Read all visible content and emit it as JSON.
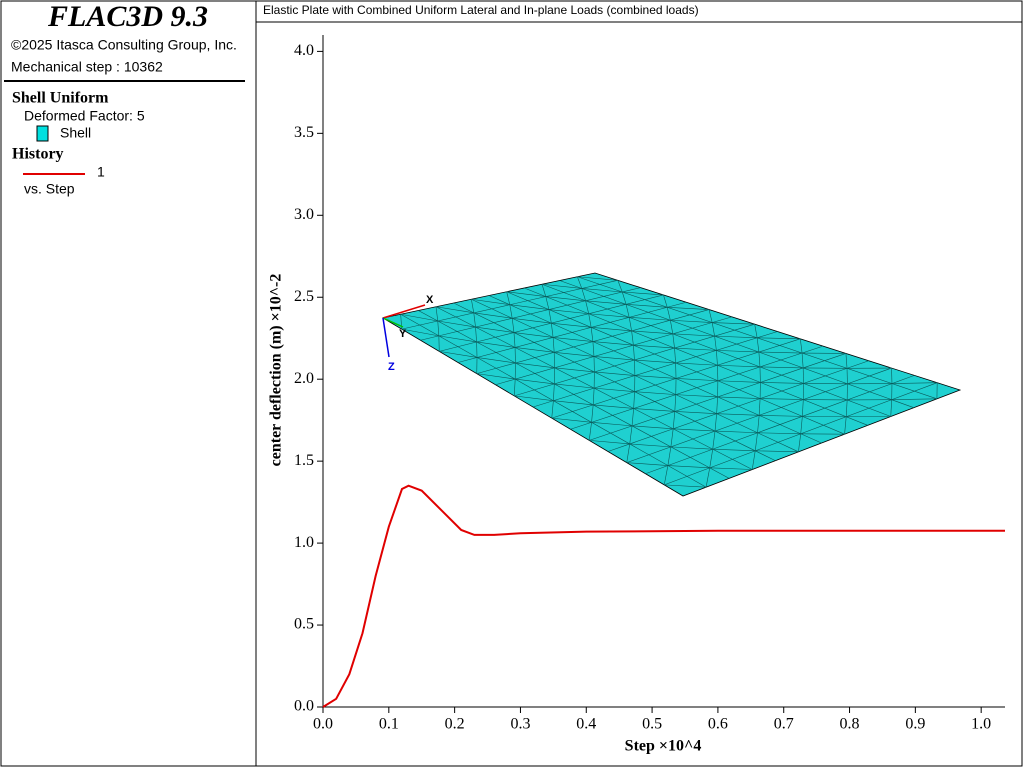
{
  "header": {
    "title": "FLAC3D 9.3",
    "copyright": "©2025 Itasca Consulting Group, Inc.",
    "step": "Mechanical step : 10362"
  },
  "legend": {
    "group_title": "Shell Uniform",
    "deformed": "Deformed Factor: 5",
    "shell": "Shell",
    "history": "History",
    "vs": "vs. Step"
  },
  "axes_triad": {
    "x": "X",
    "y": "Y",
    "z": "Z"
  },
  "chart_data": {
    "type": "line",
    "title": "Elastic Plate with Combined Uniform Lateral and In-plane Loads (combined loads)",
    "x_label": "Step ×10^4",
    "y_label": "center deflection (m) ×10^-2",
    "x": [
      0,
      0.02,
      0.04,
      0.06,
      0.08,
      0.1,
      0.12,
      0.13,
      0.15,
      0.18,
      0.21,
      0.23,
      0.26,
      0.3,
      0.4,
      0.6,
      0.8,
      1.0362
    ],
    "series": [
      {
        "name": "1",
        "color": "#e00000",
        "values": [
          0,
          0.05,
          0.2,
          0.45,
          0.8,
          1.1,
          1.33,
          1.35,
          1.32,
          1.2,
          1.08,
          1.05,
          1.05,
          1.06,
          1.07,
          1.075,
          1.075,
          1.075
        ]
      }
    ],
    "xlim": [
      0,
      1.0362
    ],
    "ylim": [
      0,
      4.1
    ],
    "xticks": [
      {
        "value": 0,
        "label": "0.0"
      },
      0.1,
      0.2,
      0.3,
      0.4,
      0.5,
      0.6,
      0.7,
      0.8,
      0.9,
      {
        "value": 1,
        "label": "1.0"
      }
    ],
    "yticks": [
      {
        "value": 0,
        "label": "0.0"
      },
      0.5,
      {
        "value": 1,
        "label": "1.0"
      },
      1.5,
      {
        "value": 2,
        "label": "2.0"
      },
      2.5,
      {
        "value": 3,
        "label": "3.0"
      },
      3.5,
      {
        "value": 4,
        "label": "4.0"
      }
    ]
  }
}
